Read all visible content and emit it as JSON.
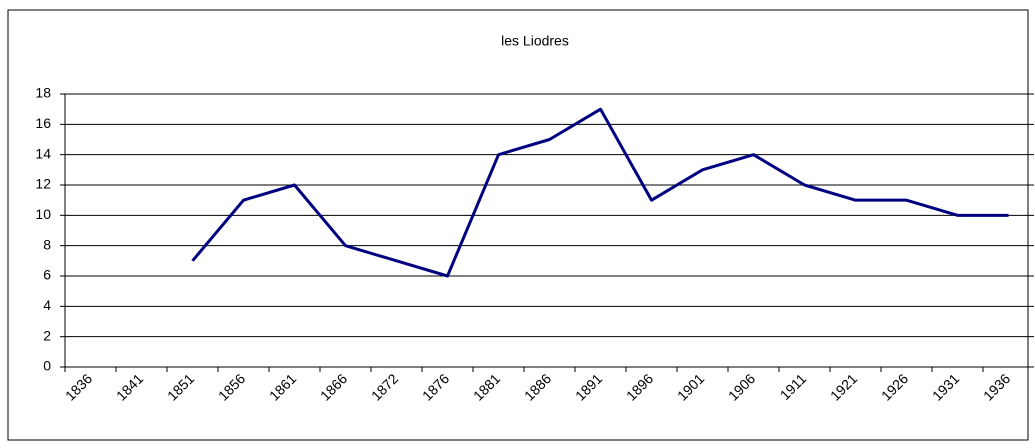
{
  "chart_data": {
    "type": "line",
    "title": "les Liodres",
    "categories": [
      "1836",
      "1841",
      "1851",
      "1856",
      "1861",
      "1866",
      "1872",
      "1876",
      "1881",
      "1886",
      "1891",
      "1896",
      "1901",
      "1906",
      "1911",
      "1921",
      "1926",
      "1931",
      "1936"
    ],
    "series": [
      {
        "name": "les Liodres",
        "color": "#000080",
        "values": [
          null,
          null,
          7,
          11,
          12,
          8,
          7,
          6,
          14,
          15,
          17,
          11,
          13,
          14,
          12,
          11,
          11,
          10,
          10
        ]
      }
    ],
    "ylim": [
      0,
      18
    ],
    "yticks": [
      0,
      2,
      4,
      6,
      8,
      10,
      12,
      14,
      16,
      18
    ],
    "grid": true
  }
}
